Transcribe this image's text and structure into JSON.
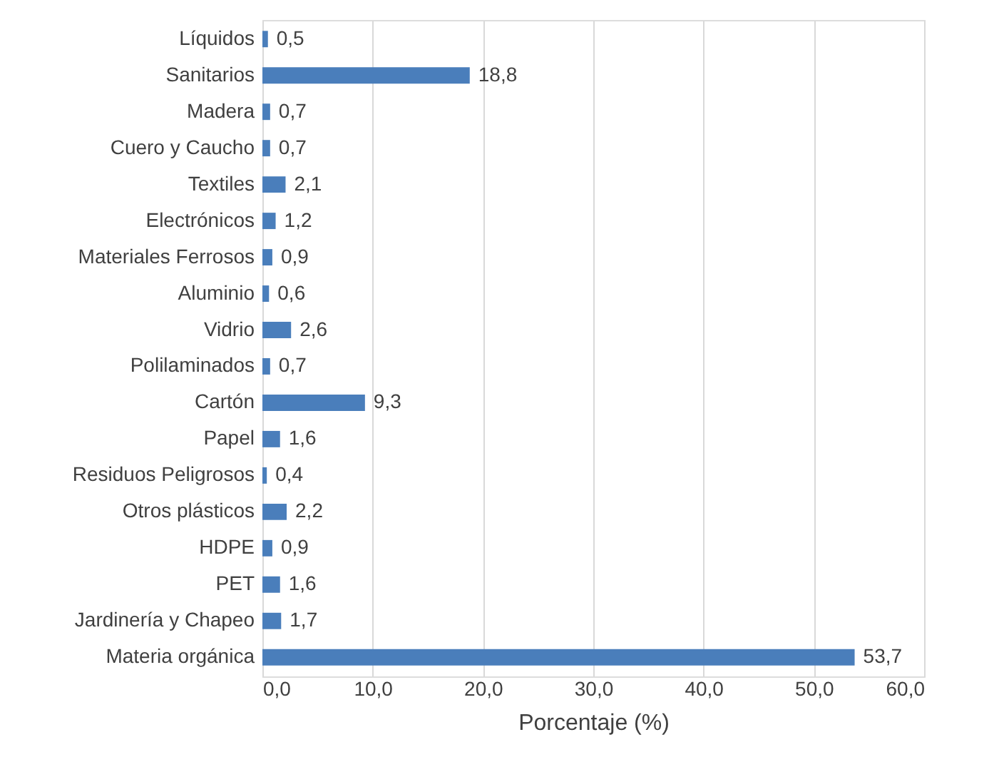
{
  "chart_data": {
    "type": "bar",
    "orientation": "horizontal",
    "xlabel": "Porcentaje (%)",
    "categories": [
      "Líquidos",
      "Sanitarios",
      "Madera",
      "Cuero y Caucho",
      "Textiles",
      "Electrónicos",
      "Materiales Ferrosos",
      "Aluminio",
      "Vidrio",
      "Polilaminados",
      "Cartón",
      "Papel",
      "Residuos Peligrosos",
      "Otros plásticos",
      "HDPE",
      "PET",
      "Jardinería y Chapeo",
      "Materia orgánica"
    ],
    "values": [
      0.5,
      18.8,
      0.7,
      0.7,
      2.1,
      1.2,
      0.9,
      0.6,
      2.6,
      0.7,
      9.3,
      1.6,
      0.4,
      2.2,
      0.9,
      1.6,
      1.7,
      53.7
    ],
    "value_labels": [
      "0,5",
      "18,8",
      "0,7",
      "0,7",
      "2,1",
      "1,2",
      "0,9",
      "0,6",
      "2,6",
      "0,7",
      "9,3",
      "1,6",
      "0,4",
      "2,2",
      "0,9",
      "1,6",
      "1,7",
      "53,7"
    ],
    "color": "#4a7ebb",
    "xlim": [
      0,
      60
    ],
    "xticks": [
      {
        "value": 0,
        "label": "0,0"
      },
      {
        "value": 10,
        "label": "10,0"
      },
      {
        "value": 20,
        "label": "20,0"
      },
      {
        "value": 30,
        "label": "30,0"
      },
      {
        "value": 40,
        "label": "40,0"
      },
      {
        "value": 50,
        "label": "50,0"
      },
      {
        "value": 60,
        "label": "60,0"
      }
    ],
    "grid": "x"
  }
}
